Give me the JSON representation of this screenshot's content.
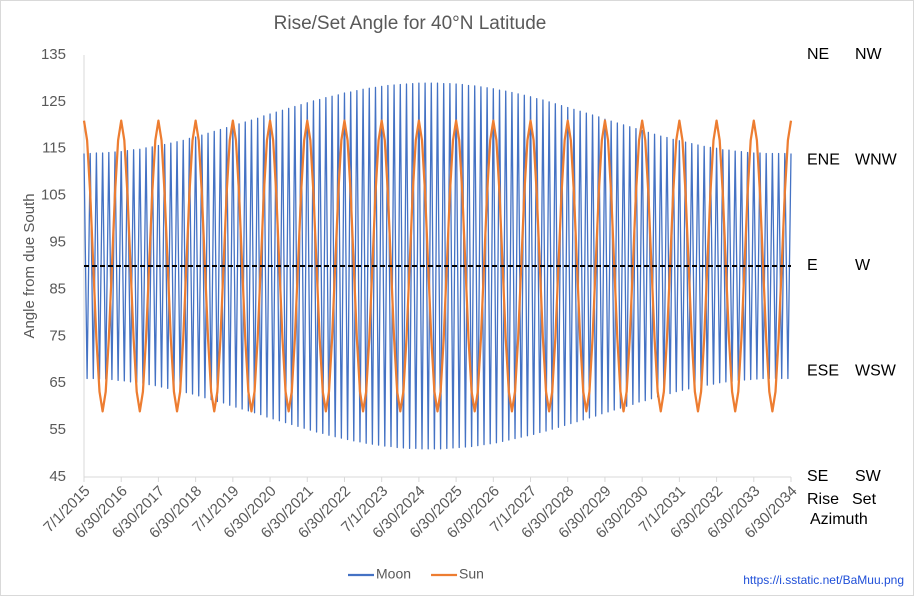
{
  "chart_data": {
    "type": "line",
    "title": "Rise/Set Angle for 40°N Latitude",
    "y_label": "Angle from due South",
    "ylim": [
      45,
      135
    ],
    "yticks": [
      45,
      55,
      65,
      75,
      85,
      95,
      105,
      115,
      125,
      135
    ],
    "reference_line": 90,
    "legend": "bottom",
    "compass": [
      {
        "value": 135,
        "rise": "NE",
        "set": "NW"
      },
      {
        "value": 112.5,
        "rise": "ENE",
        "set": "WNW"
      },
      {
        "value": 90,
        "rise": "E",
        "set": "W"
      },
      {
        "value": 67.5,
        "rise": "ESE",
        "set": "WSW"
      },
      {
        "value": 45,
        "rise": "SE",
        "set": "SW"
      }
    ],
    "rise_label": "Rise",
    "set_label": "Set",
    "azimuth_label": "Azimuth",
    "source": "https://i.sstatic.net/BaMuu.png",
    "categories": [
      "7/1/2015",
      null,
      null,
      null,
      null,
      null,
      null,
      null,
      null,
      null,
      null,
      null,
      "6/30/2016",
      null,
      null,
      null,
      null,
      null,
      null,
      null,
      null,
      null,
      null,
      null,
      "6/30/2017",
      null,
      null,
      null,
      null,
      null,
      null,
      null,
      null,
      null,
      null,
      null,
      "6/30/2018",
      null,
      null,
      null,
      null,
      null,
      null,
      null,
      null,
      null,
      null,
      null,
      "7/1/2019",
      null,
      null,
      null,
      null,
      null,
      null,
      null,
      null,
      null,
      null,
      null,
      "6/30/2020",
      null,
      null,
      null,
      null,
      null,
      null,
      null,
      null,
      null,
      null,
      null,
      "6/30/2021",
      null,
      null,
      null,
      null,
      null,
      null,
      null,
      null,
      null,
      null,
      null,
      "6/30/2022",
      null,
      null,
      null,
      null,
      null,
      null,
      null,
      null,
      null,
      null,
      null,
      "7/1/2023",
      null,
      null,
      null,
      null,
      null,
      null,
      null,
      null,
      null,
      null,
      null,
      "6/30/2024",
      null,
      null,
      null,
      null,
      null,
      null,
      null,
      null,
      null,
      null,
      null,
      "6/30/2025",
      null,
      null,
      null,
      null,
      null,
      null,
      null,
      null,
      null,
      null,
      null,
      "6/30/2026",
      null,
      null,
      null,
      null,
      null,
      null,
      null,
      null,
      null,
      null,
      null,
      "7/1/2027",
      null,
      null,
      null,
      null,
      null,
      null,
      null,
      null,
      null,
      null,
      null,
      "6/30/2028",
      null,
      null,
      null,
      null,
      null,
      null,
      null,
      null,
      null,
      null,
      null,
      "6/30/2029",
      null,
      null,
      null,
      null,
      null,
      null,
      null,
      null,
      null,
      null,
      null,
      "6/30/2030",
      null,
      null,
      null,
      null,
      null,
      null,
      null,
      null,
      null,
      null,
      null,
      "7/1/2031",
      null,
      null,
      null,
      null,
      null,
      null,
      null,
      null,
      null,
      null,
      null,
      "6/30/2032",
      null,
      null,
      null,
      null,
      null,
      null,
      null,
      null,
      null,
      null,
      null,
      "6/30/2033",
      null,
      null,
      null,
      null,
      null,
      null,
      null,
      null,
      null,
      null,
      null,
      "6/30/2034"
    ],
    "series": [
      {
        "name": "Moon",
        "color": "#4472c4",
        "values": [
          114.0,
          66.0,
          114.0,
          66.0,
          114.1,
          65.9,
          114.1,
          65.9,
          114.2,
          65.8,
          114.3,
          65.6,
          114.4,
          65.5,
          114.6,
          65.3,
          114.8,
          65.2,
          114.9,
          65.0,
          115.2,
          64.7,
          115.4,
          64.5,
          115.7,
          64.2,
          115.9,
          63.9,
          116.2,
          63.6,
          116.5,
          63.3,
          116.8,
          63.0,
          117.2,
          62.7,
          117.5,
          62.3,
          117.9,
          61.9,
          118.3,
          61.5,
          118.7,
          61.1,
          119.1,
          60.8,
          119.5,
          60.3,
          119.9,
          59.9,
          120.3,
          59.5,
          120.7,
          59.1,
          121.1,
          58.7,
          121.5,
          58.3,
          122.0,
          57.8,
          122.4,
          57.4,
          122.8,
          57.0,
          123.2,
          56.6,
          123.6,
          56.2,
          124.0,
          55.8,
          124.4,
          55.4,
          124.8,
          55.0,
          125.2,
          54.6,
          125.5,
          54.3,
          125.9,
          53.9,
          126.2,
          53.6,
          126.5,
          53.3,
          126.9,
          53.0,
          127.1,
          52.7,
          127.4,
          52.5,
          127.7,
          52.2,
          127.9,
          52.0,
          128.1,
          51.8,
          128.3,
          51.6,
          128.5,
          51.5,
          128.6,
          51.3,
          128.7,
          51.2,
          128.8,
          51.1,
          128.9,
          51.1,
          129.0,
          51.0,
          129.0,
          51.0,
          129.0,
          51.0,
          129.0,
          51.0,
          128.9,
          51.1,
          128.9,
          51.2,
          128.8,
          51.3,
          128.7,
          51.4,
          128.5,
          51.5,
          128.4,
          51.7,
          128.2,
          51.9,
          128.0,
          52.1,
          127.8,
          52.3,
          127.5,
          52.6,
          127.3,
          52.9,
          127.0,
          53.2,
          126.7,
          53.5,
          126.4,
          53.8,
          126.1,
          54.1,
          125.7,
          54.5,
          125.4,
          54.8,
          125.0,
          55.2,
          124.6,
          55.6,
          124.2,
          56.0,
          123.8,
          56.4,
          123.4,
          56.8,
          123.0,
          57.2,
          122.6,
          57.6,
          122.2,
          58.0,
          121.8,
          58.5,
          121.3,
          58.9,
          120.9,
          59.3,
          120.5,
          59.7,
          120.1,
          60.1,
          119.7,
          60.5,
          119.3,
          61.0,
          118.9,
          61.3,
          118.5,
          61.7,
          118.1,
          62.1,
          117.7,
          62.5,
          117.4,
          62.8,
          117.0,
          63.2,
          116.7,
          63.5,
          116.4,
          63.8,
          116.1,
          64.1,
          115.8,
          64.4,
          115.5,
          64.6,
          115.3,
          64.8,
          115.1,
          65.1,
          114.8,
          65.3,
          114.7,
          65.4,
          114.5,
          65.6,
          114.4,
          65.7,
          114.2,
          65.8,
          114.1,
          65.9,
          114.1,
          66.0,
          114.0,
          66.0,
          114.0,
          66.0,
          114.0,
          66.0,
          114.0,
          66.0,
          114.0
        ]
      },
      {
        "name": "Sun",
        "color": "#ed7d31",
        "values": [
          121,
          116.8,
          105.5,
          90,
          74.5,
          63.2,
          59,
          63.2,
          74.5,
          90,
          105.5,
          116.8,
          121,
          116.8,
          105.5,
          90,
          74.5,
          63.2,
          59,
          63.2,
          74.5,
          90,
          105.5,
          116.8,
          121,
          116.8,
          105.5,
          90,
          74.5,
          63.2,
          59,
          63.2,
          74.5,
          90,
          105.5,
          116.8,
          121,
          116.8,
          105.5,
          90,
          74.5,
          63.2,
          59,
          63.2,
          74.5,
          90,
          105.5,
          116.8,
          121,
          116.8,
          105.5,
          90,
          74.5,
          63.2,
          59,
          63.2,
          74.5,
          90,
          105.5,
          116.8,
          121,
          116.8,
          105.5,
          90,
          74.5,
          63.2,
          59,
          63.2,
          74.5,
          90,
          105.5,
          116.8,
          121,
          116.8,
          105.5,
          90,
          74.5,
          63.2,
          59,
          63.2,
          74.5,
          90,
          105.5,
          116.8,
          121,
          116.8,
          105.5,
          90,
          74.5,
          63.2,
          59,
          63.2,
          74.5,
          90,
          105.5,
          116.8,
          121,
          116.8,
          105.5,
          90,
          74.5,
          63.2,
          59,
          63.2,
          74.5,
          90,
          105.5,
          116.8,
          121,
          116.8,
          105.5,
          90,
          74.5,
          63.2,
          59,
          63.2,
          74.5,
          90,
          105.5,
          116.8,
          121,
          116.8,
          105.5,
          90,
          74.5,
          63.2,
          59,
          63.2,
          74.5,
          90,
          105.5,
          116.8,
          121,
          116.8,
          105.5,
          90,
          74.5,
          63.2,
          59,
          63.2,
          74.5,
          90,
          105.5,
          116.8,
          121,
          116.8,
          105.5,
          90,
          74.5,
          63.2,
          59,
          63.2,
          74.5,
          90,
          105.5,
          116.8,
          121,
          116.8,
          105.5,
          90,
          74.5,
          63.2,
          59,
          63.2,
          74.5,
          90,
          105.5,
          116.8,
          121,
          116.8,
          105.5,
          90,
          74.5,
          63.2,
          59,
          63.2,
          74.5,
          90,
          105.5,
          116.8,
          121,
          116.8,
          105.5,
          90,
          74.5,
          63.2,
          59,
          63.2,
          74.5,
          90,
          105.5,
          116.8,
          121,
          116.8,
          105.5,
          90,
          74.5,
          63.2,
          59,
          63.2,
          74.5,
          90,
          105.5,
          116.8,
          121,
          116.8,
          105.5,
          90,
          74.5,
          63.2,
          59,
          63.2,
          74.5,
          90,
          105.5,
          116.8,
          121,
          116.8,
          105.5,
          90,
          74.5,
          63.2,
          59,
          63.2,
          74.5,
          90,
          105.5,
          116.8,
          121
        ]
      }
    ]
  }
}
